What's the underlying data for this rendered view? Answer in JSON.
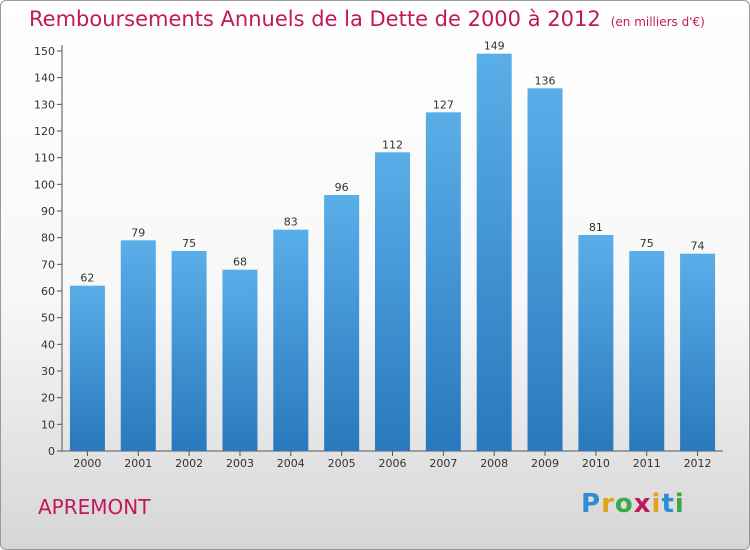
{
  "header": {
    "title": "Remboursements Annuels de la Dette de 2000 à 2012",
    "unit": "(en milliers d'€)"
  },
  "footer": {
    "commune": "APREMONT",
    "logo_text": "Proxiti"
  },
  "colors": {
    "accent": "#c2185b",
    "bar_top": "#5aaee8",
    "bar_bottom": "#2a78bd"
  },
  "chart_data": {
    "type": "bar",
    "title": "Remboursements Annuels de la Dette de 2000 à 2012",
    "ylabel": "",
    "xlabel": "",
    "categories": [
      "2000",
      "2001",
      "2002",
      "2003",
      "2004",
      "2005",
      "2006",
      "2007",
      "2008",
      "2009",
      "2010",
      "2011",
      "2012"
    ],
    "values": [
      62,
      79,
      75,
      68,
      83,
      96,
      112,
      127,
      149,
      136,
      81,
      75,
      74
    ],
    "ylim": [
      0,
      150
    ],
    "yticks": [
      0,
      10,
      20,
      30,
      40,
      50,
      60,
      70,
      80,
      90,
      100,
      110,
      120,
      130,
      140,
      150
    ],
    "grid": false,
    "legend": "none"
  }
}
